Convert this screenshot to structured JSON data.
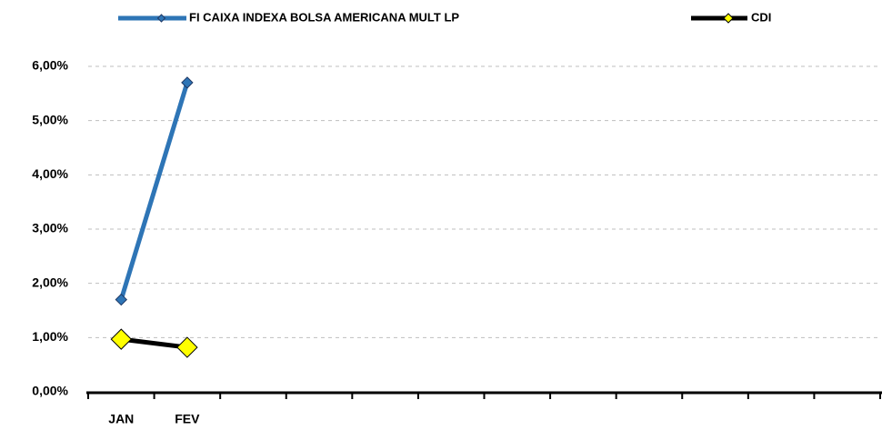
{
  "chart_data": {
    "type": "line",
    "categories": [
      "JAN",
      "FEV",
      null,
      null,
      null,
      null,
      null,
      null,
      null,
      null,
      null,
      null
    ],
    "series": [
      {
        "name": "FI CAIXA INDEXA BOLSA AMERICANA MULT LP",
        "color": "#2e75b6",
        "marker_color": "#2e75b6",
        "values": [
          1.7,
          5.7,
          null,
          null,
          null,
          null,
          null,
          null,
          null,
          null,
          null,
          null
        ]
      },
      {
        "name": "CDI",
        "color": "#000000",
        "marker_color": "#ffff00",
        "values": [
          0.97,
          0.82,
          null,
          null,
          null,
          null,
          null,
          null,
          null,
          null,
          null,
          null
        ]
      }
    ],
    "ylim": [
      0,
      6
    ],
    "yticks": [
      {
        "value": 0,
        "label": "0,00%"
      },
      {
        "value": 1,
        "label": "1,00%"
      },
      {
        "value": 2,
        "label": "2,00%"
      },
      {
        "value": 3,
        "label": "3,00%"
      },
      {
        "value": 4,
        "label": "4,00%"
      },
      {
        "value": 5,
        "label": "5,00%"
      },
      {
        "value": 6,
        "label": "6,00%"
      }
    ],
    "grid": true
  }
}
